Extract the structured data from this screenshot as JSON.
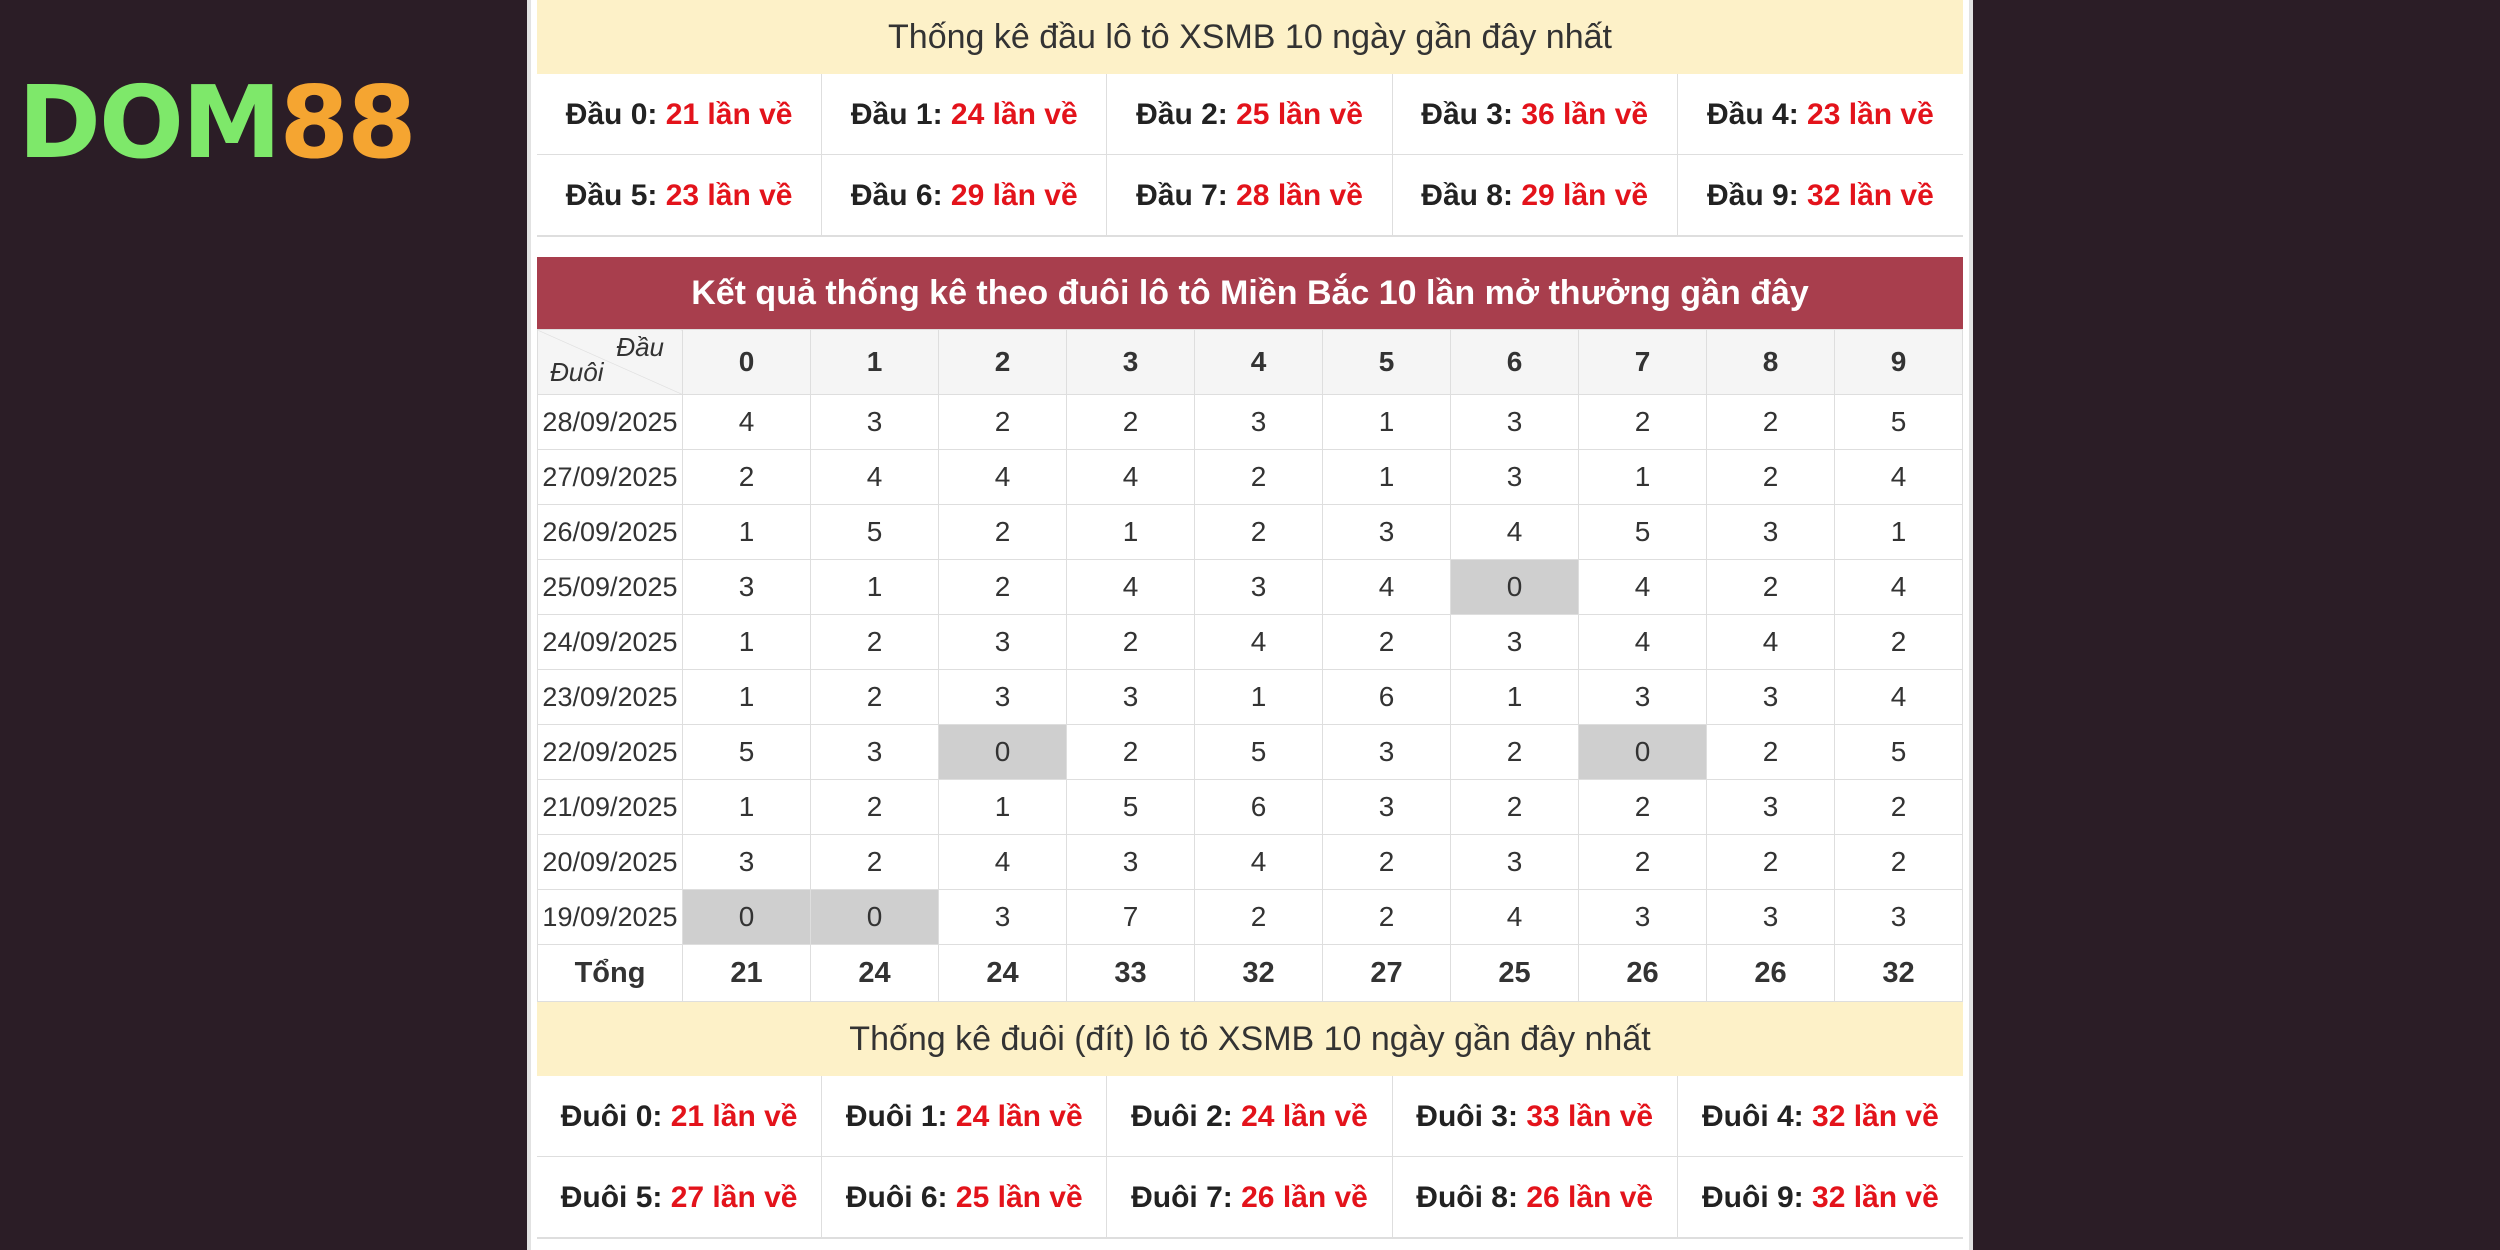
{
  "logo": {
    "part1": "DOM",
    "part2": "88"
  },
  "dau_section": {
    "title": "Thống kê đầu lô tô XSMB 10 ngày gần đây nhất",
    "items": [
      {
        "label": "Đầu 0:",
        "value": "21 lần về"
      },
      {
        "label": "Đầu 1:",
        "value": "24 lần về"
      },
      {
        "label": "Đầu 2:",
        "value": "25 lần về"
      },
      {
        "label": "Đầu 3:",
        "value": "36 lần về"
      },
      {
        "label": "Đầu 4:",
        "value": "23 lần về"
      },
      {
        "label": "Đầu 5:",
        "value": "23 lần về"
      },
      {
        "label": "Đầu 6:",
        "value": "29 lần về"
      },
      {
        "label": "Đầu 7:",
        "value": "28 lần về"
      },
      {
        "label": "Đầu 8:",
        "value": "29 lần về"
      },
      {
        "label": "Đầu 9:",
        "value": "32 lần về"
      }
    ]
  },
  "result_table": {
    "title": "Kết quả thống kê theo đuôi lô tô Miền Bắc 10 lần mở thưởng gần đây",
    "corner_top": "Đầu",
    "corner_bottom": "Đuôi",
    "columns": [
      "0",
      "1",
      "2",
      "3",
      "4",
      "5",
      "6",
      "7",
      "8",
      "9"
    ],
    "rows": [
      {
        "date": "28/09/2025",
        "values": [
          "4",
          "3",
          "2",
          "2",
          "3",
          "1",
          "3",
          "2",
          "2",
          "5"
        ]
      },
      {
        "date": "27/09/2025",
        "values": [
          "2",
          "4",
          "4",
          "4",
          "2",
          "1",
          "3",
          "1",
          "2",
          "4"
        ]
      },
      {
        "date": "26/09/2025",
        "values": [
          "1",
          "5",
          "2",
          "1",
          "2",
          "3",
          "4",
          "5",
          "3",
          "1"
        ]
      },
      {
        "date": "25/09/2025",
        "values": [
          "3",
          "1",
          "2",
          "4",
          "3",
          "4",
          "0",
          "4",
          "2",
          "4"
        ]
      },
      {
        "date": "24/09/2025",
        "values": [
          "1",
          "2",
          "3",
          "2",
          "4",
          "2",
          "3",
          "4",
          "4",
          "2"
        ]
      },
      {
        "date": "23/09/2025",
        "values": [
          "1",
          "2",
          "3",
          "3",
          "1",
          "6",
          "1",
          "3",
          "3",
          "4"
        ]
      },
      {
        "date": "22/09/2025",
        "values": [
          "5",
          "3",
          "0",
          "2",
          "5",
          "3",
          "2",
          "0",
          "2",
          "5"
        ]
      },
      {
        "date": "21/09/2025",
        "values": [
          "1",
          "2",
          "1",
          "5",
          "6",
          "3",
          "2",
          "2",
          "3",
          "2"
        ]
      },
      {
        "date": "20/09/2025",
        "values": [
          "3",
          "2",
          "4",
          "3",
          "4",
          "2",
          "3",
          "2",
          "2",
          "2"
        ]
      },
      {
        "date": "19/09/2025",
        "values": [
          "0",
          "0",
          "3",
          "7",
          "2",
          "2",
          "4",
          "3",
          "3",
          "3"
        ]
      }
    ],
    "total_label": "Tổng",
    "totals": [
      "21",
      "24",
      "24",
      "33",
      "32",
      "27",
      "25",
      "26",
      "26",
      "32"
    ]
  },
  "duoi_section": {
    "title": "Thống kê đuôi (đít) lô tô XSMB 10 ngày gần đây nhất",
    "items": [
      {
        "label": "Đuôi 0:",
        "value": "21 lần về"
      },
      {
        "label": "Đuôi 1:",
        "value": "24 lần về"
      },
      {
        "label": "Đuôi 2:",
        "value": "24 lần về"
      },
      {
        "label": "Đuôi 3:",
        "value": "33 lần về"
      },
      {
        "label": "Đuôi 4:",
        "value": "32 lần về"
      },
      {
        "label": "Đuôi 5:",
        "value": "27 lần về"
      },
      {
        "label": "Đuôi 6:",
        "value": "25 lần về"
      },
      {
        "label": "Đuôi 7:",
        "value": "26 lần về"
      },
      {
        "label": "Đuôi 8:",
        "value": "26 lần về"
      },
      {
        "label": "Đuôi 9:",
        "value": "32 lần về"
      }
    ]
  }
}
